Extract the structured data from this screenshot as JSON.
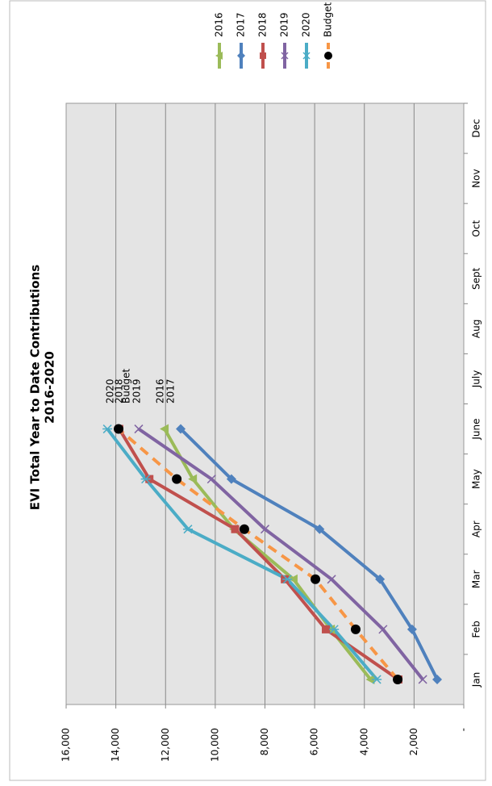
{
  "chart_data": {
    "type": "line",
    "title": "EVI Total Year to Date Contributions",
    "subtitle": "2016-2020",
    "categories": [
      "Jan",
      "Feb",
      "Mar",
      "Apr",
      "May",
      "June",
      "July",
      "Aug",
      "Sept",
      "Oct",
      "Nov",
      "Dec"
    ],
    "ylim": [
      0,
      16000
    ],
    "yticks": [
      {
        "value": 0,
        "label": "-"
      },
      {
        "value": 2000,
        "label": "2,000"
      },
      {
        "value": 4000,
        "label": "4,000"
      },
      {
        "value": 6000,
        "label": "6,000"
      },
      {
        "value": 8000,
        "label": "8,000"
      },
      {
        "value": 10000,
        "label": "10,000"
      },
      {
        "value": 12000,
        "label": "12,000"
      },
      {
        "value": 14000,
        "label": "14,000"
      },
      {
        "value": 16000,
        "label": "16,000"
      }
    ],
    "grid": true,
    "legend": "top-right",
    "rotated": true,
    "series": [
      {
        "name": "2016",
        "color": "#9bbb59",
        "marker": "triangle",
        "values": [
          3750,
          5350,
          6850,
          9250,
          10900,
          12040,
          null,
          null,
          null,
          null,
          null,
          null
        ]
      },
      {
        "name": "2017",
        "color": "#4f81bd",
        "marker": "diamond",
        "values": [
          1070,
          2080,
          3370,
          5800,
          9350,
          11390,
          null,
          null,
          null,
          null,
          null,
          null
        ]
      },
      {
        "name": "2018",
        "color": "#c0504d",
        "marker": "square",
        "values": [
          2630,
          5550,
          7200,
          9200,
          12650,
          13860,
          null,
          null,
          null,
          null,
          null,
          null
        ]
      },
      {
        "name": "2019",
        "color": "#8064a2",
        "marker": "x",
        "values": [
          1650,
          3250,
          5320,
          8000,
          10150,
          13080,
          null,
          null,
          null,
          null,
          null,
          null
        ]
      },
      {
        "name": "2020",
        "color": "#4bacc6",
        "marker": "star",
        "values": [
          3500,
          5220,
          7100,
          11100,
          12800,
          14340,
          null,
          null,
          null,
          null,
          null,
          null
        ]
      },
      {
        "name": "Budget",
        "color": "#f79646",
        "marker": "circle",
        "dashed": true,
        "values": [
          2660,
          4350,
          5970,
          8830,
          11550,
          13890,
          null,
          null,
          null,
          null,
          null,
          null
        ]
      }
    ]
  }
}
